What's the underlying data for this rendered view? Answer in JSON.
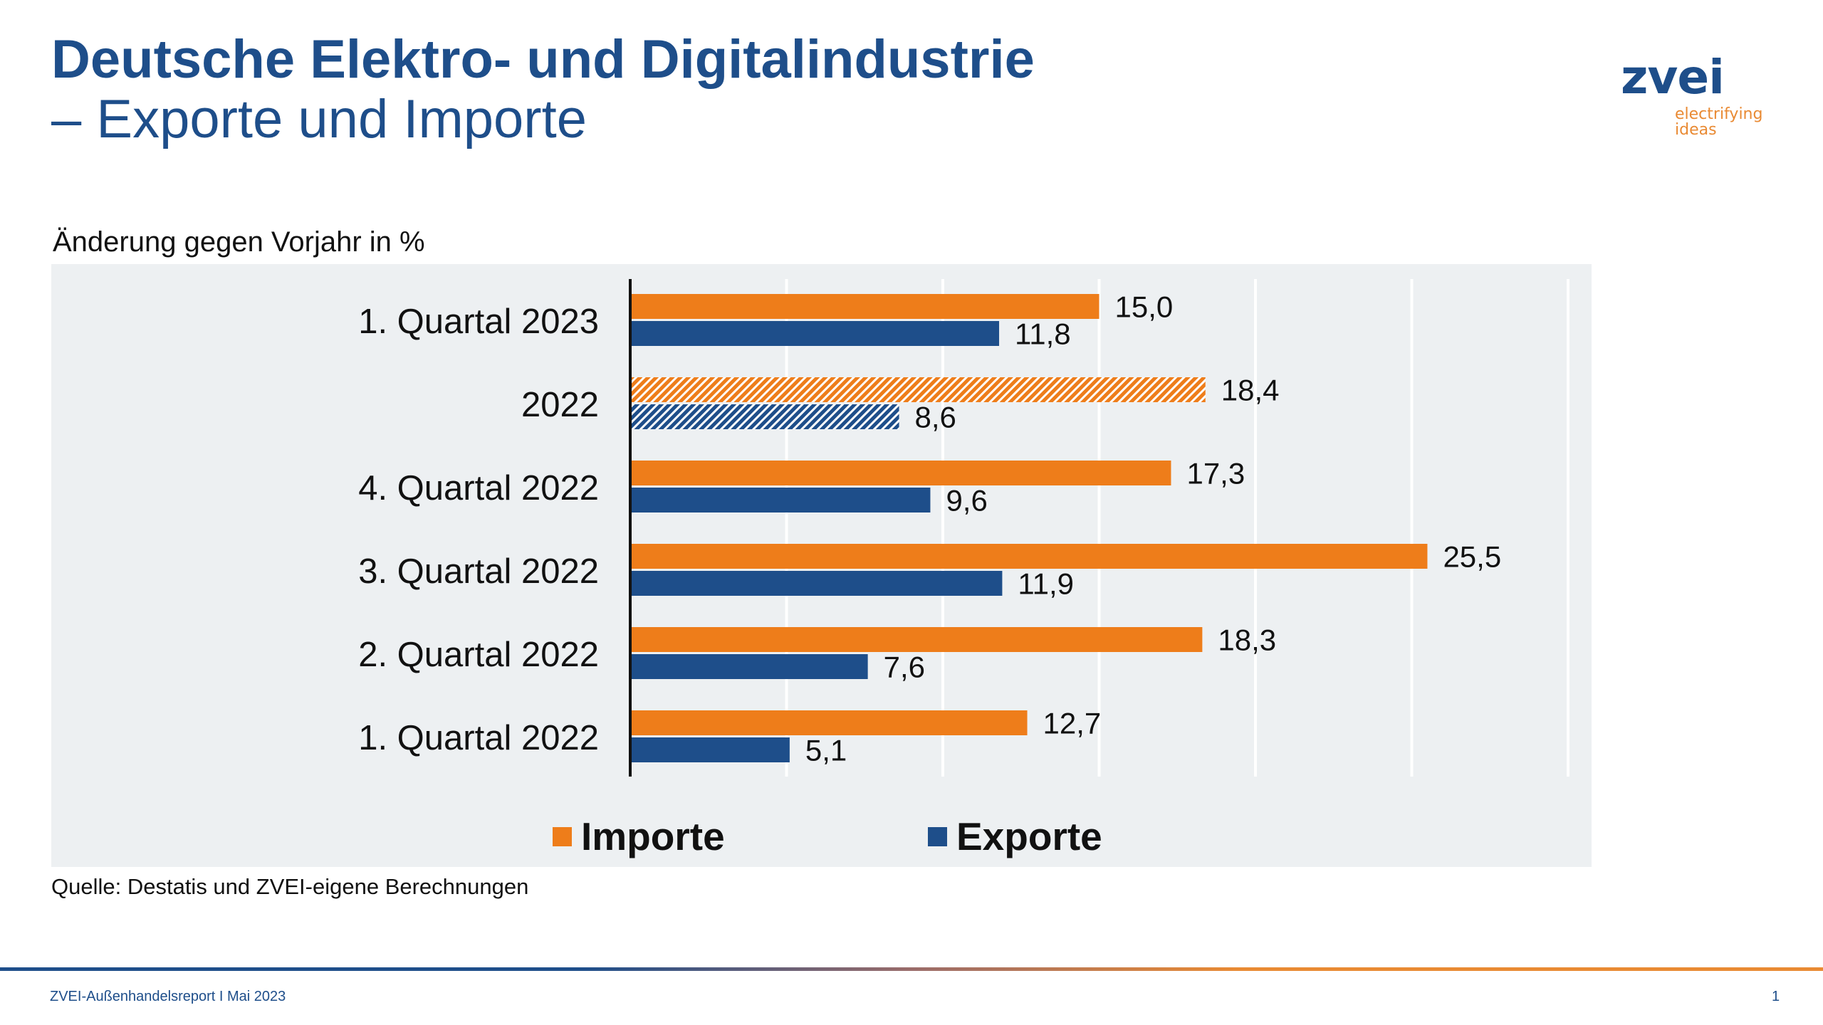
{
  "header": {
    "title_line1": "Deutsche Elektro- und Digitalindustrie",
    "title_line2": "– Exporte und Importe"
  },
  "logo": {
    "name": "zvei",
    "tagline_1": "electrifying",
    "tagline_2": "ideas"
  },
  "colors": {
    "importe": "#ee7d1a",
    "exporte": "#1e4e8a",
    "panel": "#edf0f2",
    "brand_blue": "#1e4e8a"
  },
  "chart_data": {
    "type": "bar",
    "orientation": "horizontal",
    "title": "",
    "subtitle": "Änderung gegen Vorjahr in %",
    "xlabel": "",
    "ylabel": "",
    "xlim": [
      0,
      30
    ],
    "grid": true,
    "grid_ticks": [
      5,
      10,
      15,
      20,
      25,
      30
    ],
    "legend_position": "bottom",
    "categories": [
      "1. Quartal 2023",
      "2022",
      "4. Quartal 2022",
      "3. Quartal 2022",
      "2. Quartal 2022",
      "1. Quartal 2022"
    ],
    "hatched_categories": [
      "2022"
    ],
    "series": [
      {
        "name": "Importe",
        "color": "#ee7d1a",
        "values": [
          15.0,
          18.4,
          17.3,
          25.5,
          18.3,
          12.7
        ],
        "labels": [
          "15,0",
          "18,4",
          "17,3",
          "25,5",
          "18,3",
          "12,7"
        ]
      },
      {
        "name": "Exporte",
        "color": "#1e4e8a",
        "values": [
          11.8,
          8.6,
          9.6,
          11.9,
          7.6,
          5.1
        ],
        "labels": [
          "11,8",
          "8,6",
          "9,6",
          "11,9",
          "7,6",
          "5,1"
        ]
      }
    ]
  },
  "source": "Quelle: Destatis und ZVEI-eigene Berechnungen",
  "footer": {
    "text": "ZVEI-Außenhandelsreport I Mai 2023",
    "page": "1"
  }
}
